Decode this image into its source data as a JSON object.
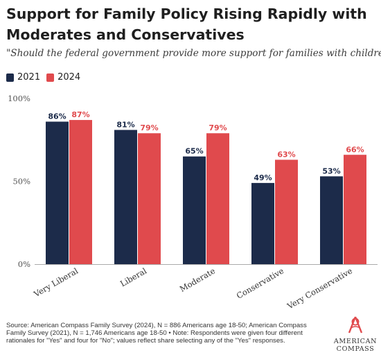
{
  "header": {
    "title": "Support for Family Policy Rising Rapidly with Moderates and Conservatives",
    "subtitle": "\"Should the federal government provide more support for families with children?\""
  },
  "colors": {
    "series_2021": "#1c2b4a",
    "series_2024": "#e04a4d"
  },
  "chart_data": {
    "type": "bar",
    "title": "Support for Family Policy Rising Rapidly with Moderates and Conservatives",
    "subtitle": "\"Should the federal government provide more support for families with children?\"",
    "categories": [
      "Very Liberal",
      "Liberal",
      "Moderate",
      "Conservative",
      "Very Conservative"
    ],
    "series": [
      {
        "name": "2021",
        "values": [
          86,
          81,
          65,
          49,
          53
        ],
        "labels": [
          "86%",
          "81%",
          "65%",
          "49%",
          "53%"
        ]
      },
      {
        "name": "2024",
        "values": [
          87,
          79,
          79,
          63,
          66
        ],
        "labels": [
          "87%",
          "79%",
          "79%",
          "63%",
          "66%"
        ]
      }
    ],
    "ylim": [
      0,
      100
    ],
    "yticks": [
      0,
      50,
      100
    ],
    "ytick_labels": [
      "0%",
      "50%",
      "100%"
    ],
    "grid": false,
    "legend": "top-left"
  },
  "footer": {
    "source_note": "Source: American Compass Family Survey (2024), N = 886 Americans age 18-50; American Compass Family Survey (2021), N = 1,746 Americans age 18-50 • Note: Respondents were given four different rationales for \"Yes\" and four for \"No\"; values reflect share selecting any of the \"Yes\" responses.",
    "logo_line1": "AMERICAN",
    "logo_line2": "COMPASS"
  }
}
